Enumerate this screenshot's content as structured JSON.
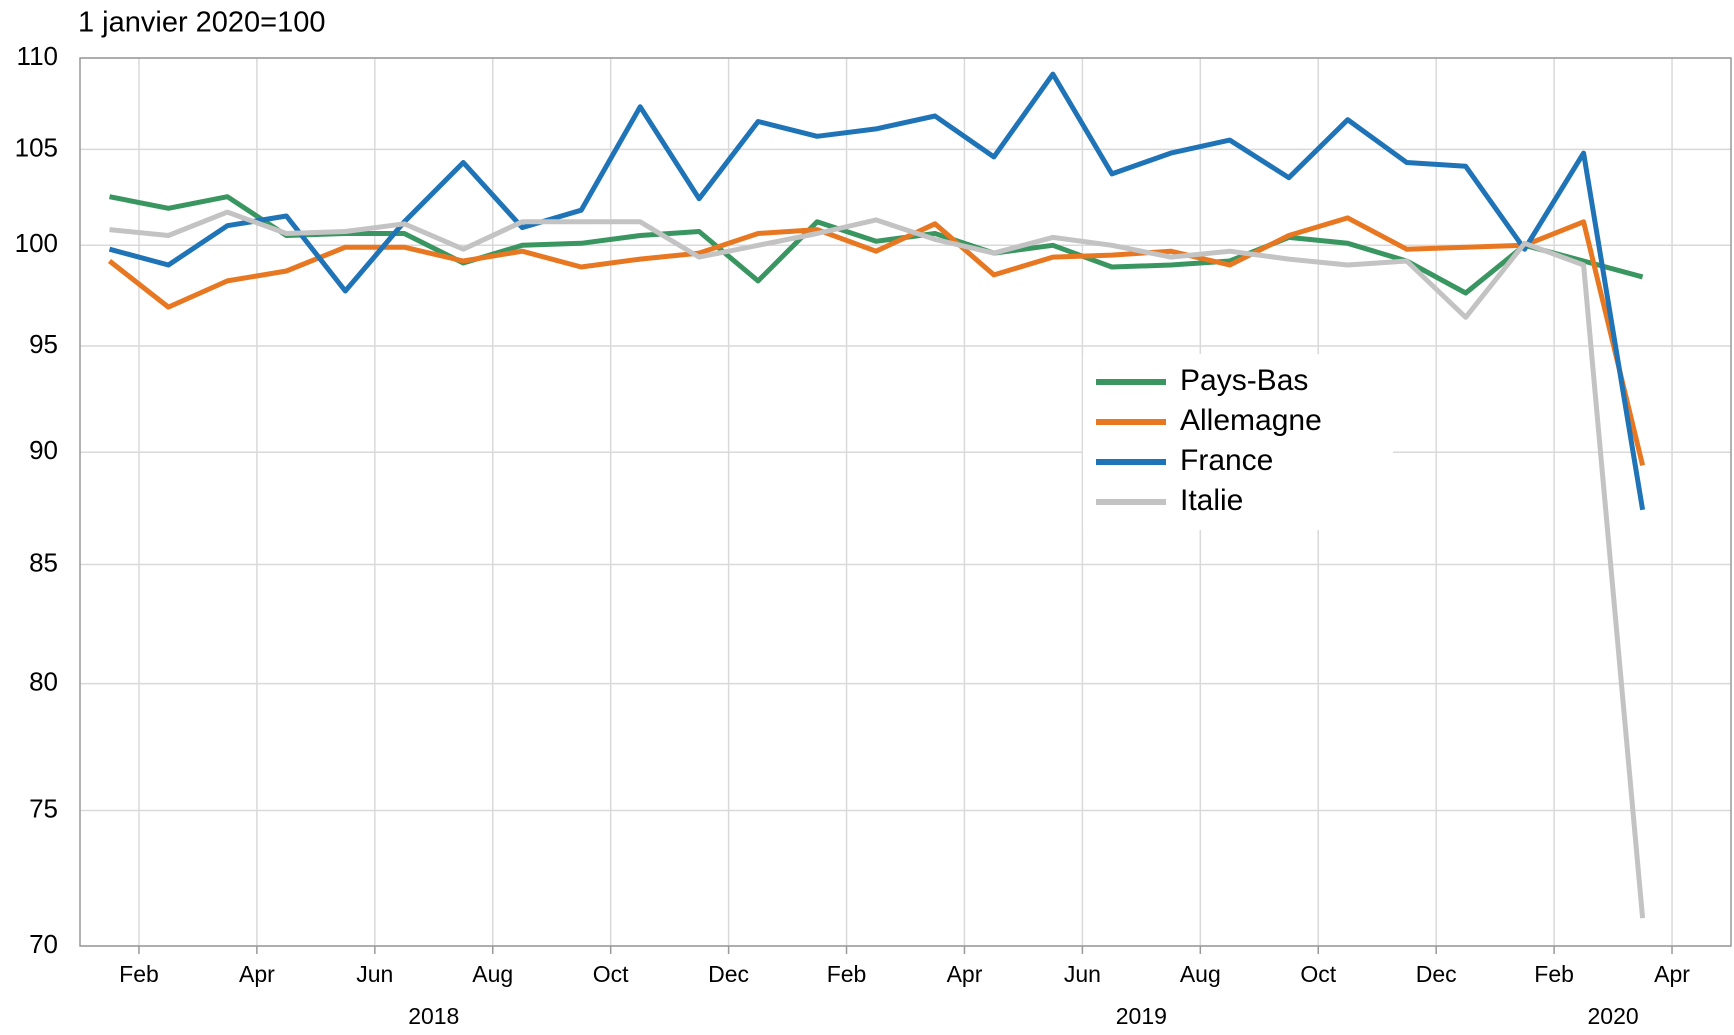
{
  "chart_data": {
    "type": "line",
    "ylabel": "1 janvier 2020=100",
    "x": [
      "2018-01",
      "2018-02",
      "2018-03",
      "2018-04",
      "2018-05",
      "2018-06",
      "2018-07",
      "2018-08",
      "2018-09",
      "2018-10",
      "2018-11",
      "2018-12",
      "2019-01",
      "2019-02",
      "2019-03",
      "2019-04",
      "2019-05",
      "2019-06",
      "2019-07",
      "2019-08",
      "2019-09",
      "2019-10",
      "2019-11",
      "2019-12",
      "2020-01",
      "2020-02",
      "2020-03"
    ],
    "series": [
      {
        "name": "Pays-Bas",
        "color": "#3a9660",
        "values": [
          102.5,
          101.9,
          102.5,
          100.5,
          100.6,
          100.6,
          99.1,
          100.0,
          100.1,
          100.5,
          100.7,
          98.2,
          101.2,
          100.2,
          100.6,
          99.6,
          100.0,
          98.9,
          99.0,
          99.2,
          100.4,
          100.1,
          99.2,
          97.6,
          100.0,
          99.2,
          98.4
        ]
      },
      {
        "name": "Allemagne",
        "color": "#e87722",
        "values": [
          99.2,
          96.9,
          98.2,
          98.7,
          99.9,
          99.9,
          99.2,
          99.7,
          98.9,
          99.3,
          99.6,
          100.6,
          100.8,
          99.7,
          101.1,
          98.5,
          99.4,
          99.5,
          99.7,
          99.0,
          100.5,
          101.4,
          99.8,
          99.9,
          100.0,
          101.2,
          89.4
        ]
      },
      {
        "name": "France",
        "color": "#1f73b7",
        "values": [
          99.8,
          99.0,
          101.0,
          101.5,
          97.7,
          101.2,
          104.3,
          100.9,
          101.8,
          107.3,
          102.4,
          106.5,
          105.7,
          106.1,
          106.8,
          104.6,
          109.1,
          103.7,
          104.8,
          105.5,
          103.5,
          106.6,
          104.3,
          104.1,
          99.8,
          104.8,
          87.4
        ]
      },
      {
        "name": "Italie",
        "color": "#c3c3c3",
        "values": [
          100.8,
          100.5,
          101.7,
          100.6,
          100.7,
          101.1,
          99.8,
          101.2,
          101.2,
          101.2,
          99.4,
          100.0,
          100.6,
          101.3,
          100.3,
          99.6,
          100.4,
          100.0,
          99.4,
          99.7,
          99.3,
          99.0,
          99.2,
          96.4,
          100.1,
          99.0,
          71.0
        ]
      }
    ],
    "ylim": [
      70,
      110
    ],
    "yticks": [
      70,
      75,
      80,
      85,
      90,
      95,
      100,
      105,
      110
    ],
    "log_y": true,
    "xlim": [
      "2018-01",
      "2020-05"
    ],
    "xticks": [
      {
        "value": "2018-02",
        "label": "Feb"
      },
      {
        "value": "2018-04",
        "label": "Apr"
      },
      {
        "value": "2018-06",
        "label": "Jun"
      },
      {
        "value": "2018-08",
        "label": "Aug"
      },
      {
        "value": "2018-10",
        "label": "Oct"
      },
      {
        "value": "2018-12",
        "label": "Dec"
      },
      {
        "value": "2019-02",
        "label": "Feb"
      },
      {
        "value": "2019-04",
        "label": "Apr"
      },
      {
        "value": "2019-06",
        "label": "Jun"
      },
      {
        "value": "2019-08",
        "label": "Aug"
      },
      {
        "value": "2019-10",
        "label": "Oct"
      },
      {
        "value": "2019-12",
        "label": "Dec"
      },
      {
        "value": "2020-02",
        "label": "Feb"
      },
      {
        "value": "2020-04",
        "label": "Apr"
      }
    ],
    "years": [
      "2018",
      "2019",
      "2020"
    ],
    "grid": true,
    "legend": "center"
  }
}
